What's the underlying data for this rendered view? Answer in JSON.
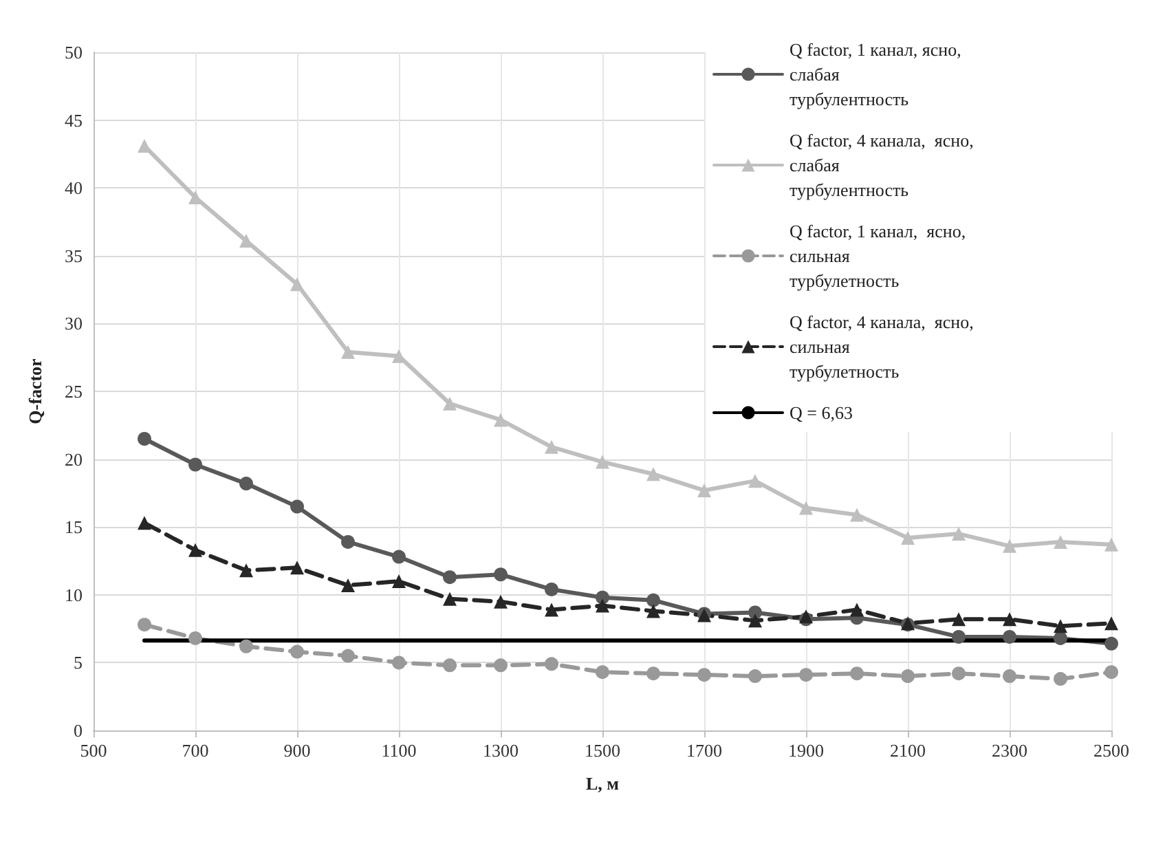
{
  "chart_data": {
    "type": "line",
    "xlabel": "L, м",
    "ylabel": "Q-factor",
    "x": [
      600,
      700,
      800,
      900,
      1000,
      1100,
      1200,
      1300,
      1400,
      1500,
      1600,
      1700,
      1800,
      1900,
      2000,
      2100,
      2200,
      2300,
      2400,
      2500
    ],
    "series": [
      {
        "name": "Q factor, 1 канал, ясно, слабая турбулентность",
        "color": "#595959",
        "marker": "circle",
        "line_style": "solid",
        "values": [
          21.5,
          19.6,
          18.2,
          16.5,
          13.9,
          12.8,
          11.3,
          11.5,
          10.4,
          9.8,
          9.6,
          8.6,
          8.7,
          8.2,
          8.3,
          7.8,
          6.9,
          6.9,
          6.8,
          6.4
        ]
      },
      {
        "name": "Q factor, 4 канала,  ясно, слабая турбулентность",
        "color": "#bfbfbf",
        "marker": "triangle",
        "line_style": "solid",
        "values": [
          43.1,
          39.3,
          36.1,
          32.9,
          27.9,
          27.6,
          24.1,
          22.9,
          20.9,
          19.8,
          18.9,
          17.7,
          18.4,
          16.4,
          15.9,
          14.2,
          14.5,
          13.6,
          13.9,
          13.7
        ]
      },
      {
        "name": "Q factor, 1 канал,  ясно, сильная турбулетность",
        "color": "#999999",
        "marker": "circle",
        "line_style": "dashed",
        "values": [
          7.8,
          6.8,
          6.2,
          5.8,
          5.5,
          5.0,
          4.8,
          4.8,
          4.9,
          4.3,
          4.2,
          4.1,
          4.0,
          4.1,
          4.2,
          4.0,
          4.2,
          4.0,
          3.8,
          4.3
        ]
      },
      {
        "name": "Q factor, 4 канала,  ясно, сильная турбулетность",
        "color": "#262626",
        "marker": "triangle",
        "line_style": "dashed",
        "values": [
          15.3,
          13.3,
          11.8,
          12.0,
          10.7,
          11.0,
          9.7,
          9.5,
          8.9,
          9.2,
          8.8,
          8.5,
          8.1,
          8.4,
          8.9,
          7.9,
          8.2,
          8.2,
          7.7,
          7.9
        ]
      },
      {
        "name": "Q = 6,63",
        "color": "#000000",
        "marker": "none",
        "line_style": "solid",
        "x": [
          600,
          2500
        ],
        "values": [
          6.63,
          6.63
        ]
      }
    ],
    "xlim": [
      500,
      2500
    ],
    "xticks": [
      500,
      700,
      900,
      1100,
      1300,
      1500,
      1700,
      1900,
      2100,
      2300,
      2500
    ],
    "ylim": [
      0,
      50
    ],
    "yticks": [
      0,
      5,
      10,
      15,
      20,
      25,
      30,
      35,
      40,
      45,
      50
    ],
    "grid": true,
    "legend": "top right"
  }
}
